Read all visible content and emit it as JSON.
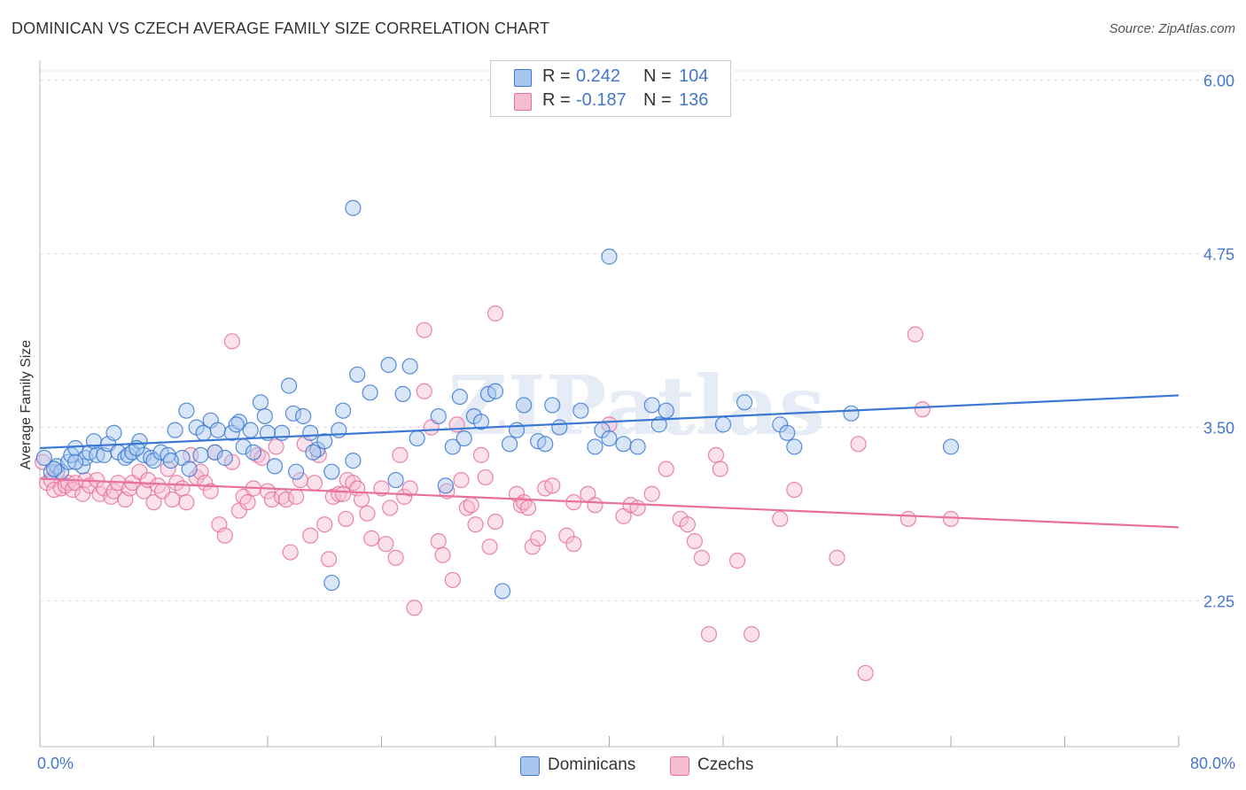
{
  "title": "DOMINICAN VS CZECH AVERAGE FAMILY SIZE CORRELATION CHART",
  "source": "Source: ZipAtlas.com",
  "watermark": "ZIPatlas",
  "colors": {
    "blue": "#3a78d4",
    "blue_fill": "#a9c7ee",
    "pink": "#e8709a",
    "pink_fill": "#f6bcd0",
    "tick": "#4477cc",
    "grid": "#dddddd"
  },
  "legend_top": {
    "rows": [
      {
        "r_label": "R =",
        "r_value": "0.242",
        "n_label": "N =",
        "n_value": "104"
      },
      {
        "r_label": "R =",
        "r_value": "-0.187",
        "n_label": "N =",
        "n_value": "136"
      }
    ]
  },
  "chart_data": {
    "type": "scatter",
    "title": "DOMINICAN VS CZECH AVERAGE FAMILY SIZE CORRELATION CHART",
    "xlabel": "",
    "ylabel": "Average Family Size",
    "xlim": [
      0,
      80
    ],
    "ylim": [
      1.2,
      6.1
    ],
    "x_tick_labels": [
      "0.0%",
      "80.0%"
    ],
    "y_ticks": [
      2.25,
      3.5,
      4.75,
      6.0
    ],
    "y_tick_labels": [
      "2.25",
      "3.50",
      "4.75",
      "6.00"
    ],
    "grid": true,
    "legend_position": "top-center and bottom",
    "series": [
      {
        "name": "Dominicans",
        "color": "#3a78d4",
        "trend": {
          "x": [
            0,
            80
          ],
          "y": [
            3.35,
            3.73
          ]
        },
        "points": [
          [
            0.3,
            3.28
          ],
          [
            0.8,
            3.18
          ],
          [
            1.2,
            3.22
          ],
          [
            1.5,
            3.18
          ],
          [
            2,
            3.25
          ],
          [
            2.2,
            3.3
          ],
          [
            2.5,
            3.35
          ],
          [
            3,
            3.22
          ],
          [
            3.2,
            3.28
          ],
          [
            3.5,
            3.32
          ],
          [
            3.8,
            3.4
          ],
          [
            4,
            3.3
          ],
          [
            4.5,
            3.3
          ],
          [
            4.8,
            3.38
          ],
          [
            5.2,
            3.46
          ],
          [
            5.5,
            3.32
          ],
          [
            6,
            3.28
          ],
          [
            6.2,
            3.3
          ],
          [
            6.5,
            3.32
          ],
          [
            7,
            3.4
          ],
          [
            7.3,
            3.3
          ],
          [
            7.8,
            3.28
          ],
          [
            8,
            3.26
          ],
          [
            8.5,
            3.32
          ],
          [
            9,
            3.3
          ],
          [
            9.5,
            3.48
          ],
          [
            10,
            3.28
          ],
          [
            10.3,
            3.62
          ],
          [
            10.5,
            3.2
          ],
          [
            11,
            3.5
          ],
          [
            11.3,
            3.3
          ],
          [
            11.5,
            3.46
          ],
          [
            12,
            3.55
          ],
          [
            12.3,
            3.32
          ],
          [
            12.5,
            3.48
          ],
          [
            13,
            3.28
          ],
          [
            13.5,
            3.46
          ],
          [
            14,
            3.54
          ],
          [
            14.3,
            3.36
          ],
          [
            14.8,
            3.48
          ],
          [
            15,
            3.32
          ],
          [
            15.5,
            3.68
          ],
          [
            15.8,
            3.58
          ],
          [
            16.5,
            3.22
          ],
          [
            17,
            3.46
          ],
          [
            17.5,
            3.8
          ],
          [
            17.8,
            3.6
          ],
          [
            18,
            3.18
          ],
          [
            18.5,
            3.58
          ],
          [
            19,
            3.46
          ],
          [
            19.5,
            3.34
          ],
          [
            20,
            3.4
          ],
          [
            20.5,
            3.18
          ],
          [
            21,
            3.48
          ],
          [
            21.3,
            3.62
          ],
          [
            22,
            3.26
          ],
          [
            22.3,
            3.88
          ],
          [
            23.2,
            3.75
          ],
          [
            24.5,
            3.95
          ],
          [
            25,
            3.12
          ],
          [
            25.5,
            3.74
          ],
          [
            26,
            3.94
          ],
          [
            26.5,
            3.42
          ],
          [
            28,
            3.58
          ],
          [
            28.5,
            3.08
          ],
          [
            29,
            3.36
          ],
          [
            29.5,
            3.72
          ],
          [
            30.5,
            3.58
          ],
          [
            31,
            3.54
          ],
          [
            31.5,
            3.74
          ],
          [
            32,
            3.76
          ],
          [
            33,
            3.38
          ],
          [
            33.5,
            3.48
          ],
          [
            34,
            3.66
          ],
          [
            35,
            3.4
          ],
          [
            35.5,
            3.38
          ],
          [
            36,
            3.66
          ],
          [
            38,
            3.62
          ],
          [
            39,
            3.36
          ],
          [
            39.5,
            3.48
          ],
          [
            40,
            3.42
          ],
          [
            41,
            3.38
          ],
          [
            42,
            3.36
          ],
          [
            43,
            3.66
          ],
          [
            43.5,
            3.52
          ],
          [
            44,
            3.62
          ],
          [
            48,
            3.52
          ],
          [
            49.5,
            3.68
          ],
          [
            52,
            3.52
          ],
          [
            52.5,
            3.46
          ],
          [
            53,
            3.36
          ],
          [
            57,
            3.6
          ],
          [
            64,
            3.36
          ],
          [
            22,
            5.08
          ],
          [
            40,
            4.73
          ],
          [
            20.5,
            2.38
          ],
          [
            32.5,
            2.32
          ],
          [
            1,
            3.2
          ],
          [
            2.5,
            3.25
          ],
          [
            6.8,
            3.35
          ],
          [
            9.2,
            3.26
          ],
          [
            13.8,
            3.52
          ],
          [
            16,
            3.46
          ],
          [
            19.2,
            3.32
          ],
          [
            29.8,
            3.42
          ],
          [
            36.5,
            3.5
          ]
        ]
      },
      {
        "name": "Czechs",
        "color": "#e8709a",
        "trend": {
          "x": [
            0,
            80
          ],
          "y": [
            3.13,
            2.78
          ]
        },
        "points": [
          [
            0.2,
            3.25
          ],
          [
            0.5,
            3.1
          ],
          [
            0.8,
            3.12
          ],
          [
            1,
            3.05
          ],
          [
            1.2,
            3.18
          ],
          [
            1.5,
            3.06
          ],
          [
            1.8,
            3.08
          ],
          [
            2,
            3.1
          ],
          [
            2.3,
            3.05
          ],
          [
            2.5,
            3.1
          ],
          [
            3,
            3.02
          ],
          [
            3.2,
            3.12
          ],
          [
            3.5,
            3.08
          ],
          [
            4,
            3.12
          ],
          [
            4.2,
            3.02
          ],
          [
            4.5,
            3.06
          ],
          [
            5,
            3.0
          ],
          [
            5.2,
            3.04
          ],
          [
            5.5,
            3.1
          ],
          [
            6,
            2.98
          ],
          [
            6.3,
            3.06
          ],
          [
            6.5,
            3.1
          ],
          [
            7,
            3.18
          ],
          [
            7.3,
            3.04
          ],
          [
            7.6,
            3.12
          ],
          [
            8,
            2.96
          ],
          [
            8.3,
            3.08
          ],
          [
            8.6,
            3.04
          ],
          [
            9,
            3.2
          ],
          [
            9.3,
            2.98
          ],
          [
            9.6,
            3.1
          ],
          [
            10,
            3.06
          ],
          [
            10.3,
            2.96
          ],
          [
            10.6,
            3.3
          ],
          [
            11,
            3.14
          ],
          [
            11.3,
            3.18
          ],
          [
            11.6,
            3.1
          ],
          [
            12,
            3.04
          ],
          [
            12.3,
            3.32
          ],
          [
            12.6,
            2.8
          ],
          [
            13,
            2.72
          ],
          [
            13.5,
            3.25
          ],
          [
            14,
            2.9
          ],
          [
            14.3,
            3.0
          ],
          [
            14.6,
            2.96
          ],
          [
            15,
            3.06
          ],
          [
            15.3,
            3.3
          ],
          [
            15.6,
            3.28
          ],
          [
            16,
            3.04
          ],
          [
            16.3,
            2.98
          ],
          [
            16.6,
            3.36
          ],
          [
            17,
            3.0
          ],
          [
            17.3,
            2.98
          ],
          [
            17.6,
            2.6
          ],
          [
            18,
            3.0
          ],
          [
            18.3,
            3.12
          ],
          [
            18.6,
            3.38
          ],
          [
            19,
            2.72
          ],
          [
            19.3,
            3.1
          ],
          [
            19.6,
            3.3
          ],
          [
            20,
            2.8
          ],
          [
            20.3,
            2.55
          ],
          [
            20.6,
            3.0
          ],
          [
            21,
            3.02
          ],
          [
            21.3,
            3.02
          ],
          [
            21.6,
            3.12
          ],
          [
            22,
            3.1
          ],
          [
            22.3,
            3.06
          ],
          [
            22.6,
            2.98
          ],
          [
            23,
            2.88
          ],
          [
            23.3,
            2.7
          ],
          [
            24,
            3.06
          ],
          [
            24.3,
            2.66
          ],
          [
            24.6,
            2.92
          ],
          [
            25,
            2.56
          ],
          [
            25.3,
            3.3
          ],
          [
            25.6,
            3.0
          ],
          [
            26,
            3.06
          ],
          [
            26.3,
            2.2
          ],
          [
            27,
            3.76
          ],
          [
            27.5,
            3.5
          ],
          [
            28,
            2.68
          ],
          [
            28.3,
            2.58
          ],
          [
            28.6,
            3.04
          ],
          [
            29,
            2.4
          ],
          [
            29.3,
            3.52
          ],
          [
            29.6,
            3.12
          ],
          [
            30,
            2.92
          ],
          [
            30.3,
            2.94
          ],
          [
            30.6,
            2.8
          ],
          [
            31,
            3.3
          ],
          [
            31.3,
            3.14
          ],
          [
            31.6,
            2.64
          ],
          [
            32,
            2.82
          ],
          [
            33.5,
            3.02
          ],
          [
            33.8,
            2.94
          ],
          [
            34,
            2.96
          ],
          [
            34.3,
            2.92
          ],
          [
            34.6,
            2.64
          ],
          [
            35,
            2.7
          ],
          [
            35.5,
            3.06
          ],
          [
            36,
            3.08
          ],
          [
            37,
            2.72
          ],
          [
            37.5,
            2.96
          ],
          [
            38.5,
            3.02
          ],
          [
            39,
            2.94
          ],
          [
            40,
            3.52
          ],
          [
            41,
            2.86
          ],
          [
            41.5,
            2.94
          ],
          [
            42,
            2.92
          ],
          [
            43,
            3.02
          ],
          [
            44,
            3.2
          ],
          [
            45,
            2.84
          ],
          [
            45.5,
            2.8
          ],
          [
            46,
            2.68
          ],
          [
            46.5,
            2.56
          ],
          [
            47.5,
            3.3
          ],
          [
            47.8,
            3.2
          ],
          [
            49,
            2.54
          ],
          [
            52,
            2.84
          ],
          [
            53,
            3.05
          ],
          [
            56,
            2.56
          ],
          [
            57.5,
            3.38
          ],
          [
            61,
            2.84
          ],
          [
            61.5,
            4.17
          ],
          [
            62,
            3.63
          ],
          [
            64,
            2.84
          ],
          [
            58,
            1.73
          ],
          [
            47,
            2.01
          ],
          [
            50,
            2.01
          ],
          [
            13.5,
            4.12
          ],
          [
            27,
            4.2
          ],
          [
            32,
            4.32
          ],
          [
            37.5,
            2.66
          ],
          [
            21.5,
            2.84
          ]
        ]
      }
    ]
  }
}
